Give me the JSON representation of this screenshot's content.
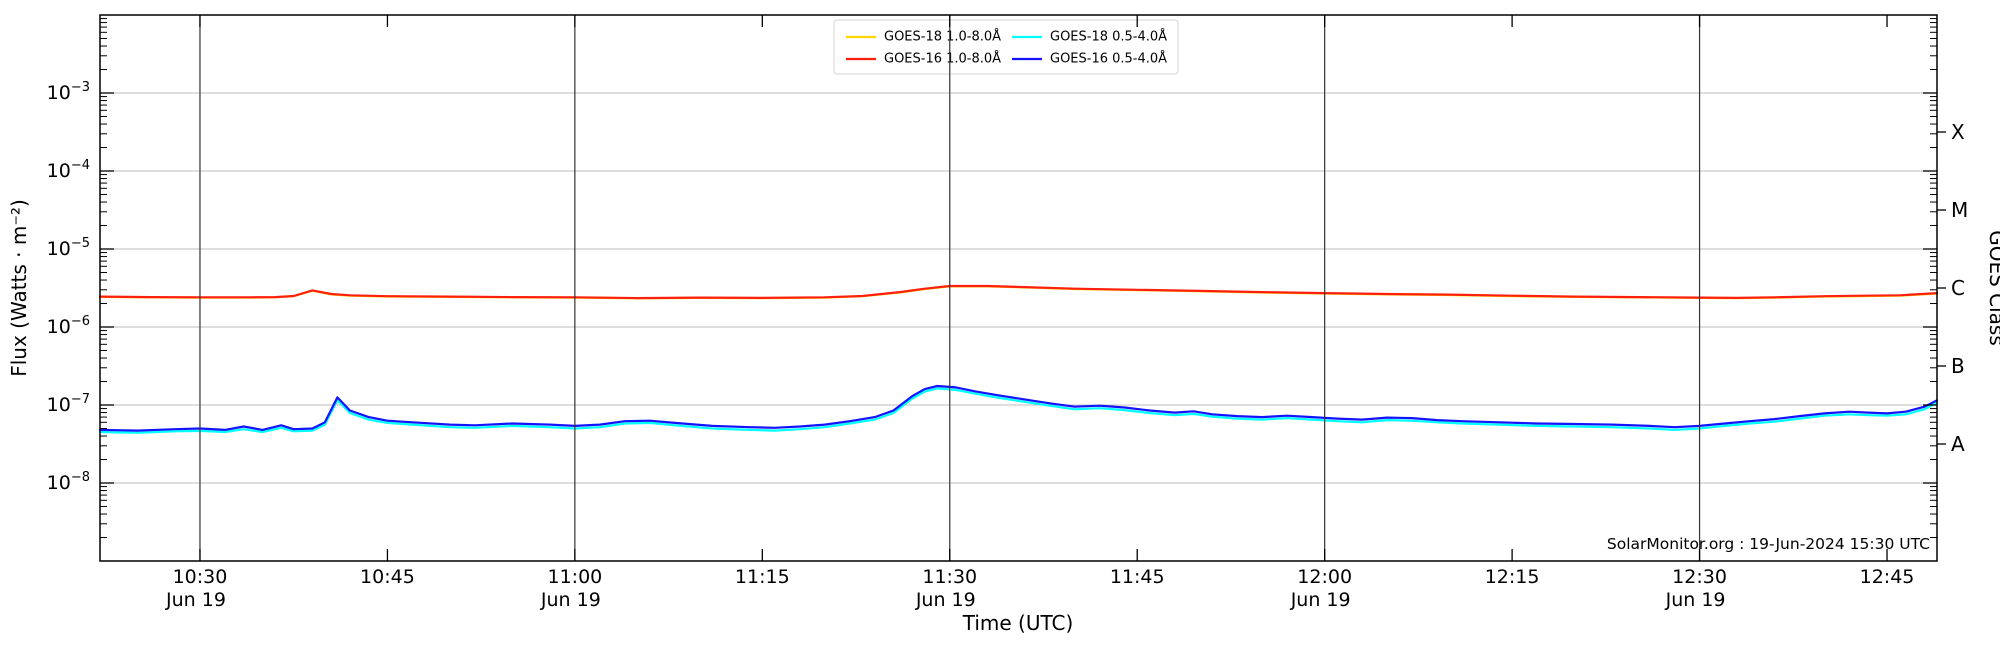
{
  "watermark": "SolarMonitor.org : 19-Jun-2024 15:30 UTC",
  "axes": {
    "xlabel": "Time (UTC)",
    "ylabel_left": "Flux (Watts · m⁻²)",
    "ylabel_right": "GOES Class"
  },
  "x_ticks": [
    {
      "t": 30,
      "label": "10:30",
      "date": "Jun 19",
      "grid": true
    },
    {
      "t": 45,
      "label": "10:45",
      "date": "",
      "grid": false
    },
    {
      "t": 60,
      "label": "11:00",
      "date": "Jun 19",
      "grid": true
    },
    {
      "t": 75,
      "label": "11:15",
      "date": "",
      "grid": false
    },
    {
      "t": 90,
      "label": "11:30",
      "date": "Jun 19",
      "grid": true
    },
    {
      "t": 105,
      "label": "11:45",
      "date": "",
      "grid": false
    },
    {
      "t": 120,
      "label": "12:00",
      "date": "Jun 19",
      "grid": true
    },
    {
      "t": 135,
      "label": "12:15",
      "date": "",
      "grid": false
    },
    {
      "t": 150,
      "label": "12:30",
      "date": "Jun 19",
      "grid": true
    },
    {
      "t": 165,
      "label": "12:45",
      "date": "",
      "grid": false
    }
  ],
  "y_ticks": [
    {
      "exp": -3,
      "base": "10",
      "sup": "−3"
    },
    {
      "exp": -4,
      "base": "10",
      "sup": "−4"
    },
    {
      "exp": -5,
      "base": "10",
      "sup": "−5"
    },
    {
      "exp": -6,
      "base": "10",
      "sup": "−6"
    },
    {
      "exp": -7,
      "base": "10",
      "sup": "−7"
    },
    {
      "exp": -8,
      "base": "10",
      "sup": "−8"
    }
  ],
  "goes_class": {
    "label": "GOES Class",
    "ticks": [
      {
        "label": "X",
        "value": 0.0003162
      },
      {
        "label": "M",
        "value": 3.162e-05
      },
      {
        "label": "C",
        "value": 3.162e-06
      },
      {
        "label": "B",
        "value": 3.162e-07
      },
      {
        "label": "A",
        "value": 3.162e-08
      }
    ]
  },
  "legend": {
    "entries": [
      "GOES-18 1.0-8.0Å",
      "GOES-16 1.0-8.0Å",
      "GOES-18 0.5-4.0Å",
      "GOES-16 0.5-4.0Å"
    ]
  },
  "colors": {
    "goes18_long": "#ffd600",
    "goes16_long": "#ff1f0e",
    "goes18_short": "#00ffff",
    "goes16_short": "#1313ff",
    "vgrid": "#333333",
    "hgrid": "#bdbdbd",
    "spine": "#000000"
  },
  "chart_data": {
    "type": "line",
    "title": "",
    "xlabel": "Time (UTC)",
    "ylabel": "Flux (Watts · m⁻²)",
    "y2label": "GOES Class",
    "x_unit": "minutes after 10:00 UTC, 19-Jun-2024",
    "xlim": [
      22,
      169
    ],
    "ylim": [
      1e-09,
      0.01
    ],
    "yscale": "log",
    "grid": {
      "vertical_every_min": 30,
      "horizontal_at_decades": [
        -8,
        -7,
        -6,
        -5,
        -4,
        -3
      ]
    },
    "legend_position": "upper center",
    "series": [
      {
        "name": "GOES-18 1.0-8.0Å",
        "color": "#ffd600",
        "points": [
          [
            22,
            2.43e-06
          ],
          [
            26,
            2.4e-06
          ],
          [
            30,
            2.38e-06
          ],
          [
            34,
            2.38e-06
          ],
          [
            36,
            2.4e-06
          ],
          [
            37.5,
            2.48e-06
          ],
          [
            39,
            2.92e-06
          ],
          [
            40.5,
            2.62e-06
          ],
          [
            42,
            2.52e-06
          ],
          [
            45,
            2.46e-06
          ],
          [
            50,
            2.43e-06
          ],
          [
            55,
            2.4e-06
          ],
          [
            60,
            2.38e-06
          ],
          [
            65,
            2.33e-06
          ],
          [
            70,
            2.36e-06
          ],
          [
            75,
            2.34e-06
          ],
          [
            80,
            2.38e-06
          ],
          [
            83,
            2.48e-06
          ],
          [
            86,
            2.77e-06
          ],
          [
            88,
            3.07e-06
          ],
          [
            90,
            3.32e-06
          ],
          [
            93,
            3.32e-06
          ],
          [
            96,
            3.22e-06
          ],
          [
            100,
            3.07e-06
          ],
          [
            105,
            2.97e-06
          ],
          [
            110,
            2.87e-06
          ],
          [
            115,
            2.77e-06
          ],
          [
            120,
            2.69e-06
          ],
          [
            125,
            2.62e-06
          ],
          [
            130,
            2.57e-06
          ],
          [
            135,
            2.49e-06
          ],
          [
            140,
            2.43e-06
          ],
          [
            145,
            2.4e-06
          ],
          [
            150,
            2.36e-06
          ],
          [
            153,
            2.34e-06
          ],
          [
            156,
            2.38e-06
          ],
          [
            160,
            2.46e-06
          ],
          [
            163,
            2.49e-06
          ],
          [
            166,
            2.52e-06
          ],
          [
            169,
            2.69e-06
          ]
        ]
      },
      {
        "name": "GOES-16 1.0-8.0Å",
        "color": "#ff1f0e",
        "points": [
          [
            22,
            2.45e-06
          ],
          [
            26,
            2.42e-06
          ],
          [
            30,
            2.4e-06
          ],
          [
            34,
            2.4e-06
          ],
          [
            36,
            2.42e-06
          ],
          [
            37.5,
            2.5e-06
          ],
          [
            39,
            2.95e-06
          ],
          [
            40.5,
            2.65e-06
          ],
          [
            42,
            2.55e-06
          ],
          [
            45,
            2.48e-06
          ],
          [
            50,
            2.45e-06
          ],
          [
            55,
            2.42e-06
          ],
          [
            60,
            2.4e-06
          ],
          [
            65,
            2.35e-06
          ],
          [
            70,
            2.38e-06
          ],
          [
            75,
            2.36e-06
          ],
          [
            80,
            2.4e-06
          ],
          [
            83,
            2.5e-06
          ],
          [
            86,
            2.8e-06
          ],
          [
            88,
            3.1e-06
          ],
          [
            90,
            3.35e-06
          ],
          [
            93,
            3.35e-06
          ],
          [
            96,
            3.25e-06
          ],
          [
            100,
            3.1e-06
          ],
          [
            105,
            3e-06
          ],
          [
            110,
            2.9e-06
          ],
          [
            115,
            2.8e-06
          ],
          [
            120,
            2.72e-06
          ],
          [
            125,
            2.65e-06
          ],
          [
            130,
            2.6e-06
          ],
          [
            135,
            2.52e-06
          ],
          [
            140,
            2.45e-06
          ],
          [
            145,
            2.42e-06
          ],
          [
            150,
            2.38e-06
          ],
          [
            153,
            2.36e-06
          ],
          [
            156,
            2.4e-06
          ],
          [
            160,
            2.48e-06
          ],
          [
            163,
            2.52e-06
          ],
          [
            166,
            2.55e-06
          ],
          [
            169,
            2.72e-06
          ]
        ]
      },
      {
        "name": "GOES-18 0.5-4.0Å",
        "color": "#00ffff",
        "points": [
          [
            22,
            4.5e-08
          ],
          [
            25,
            4.4e-08
          ],
          [
            28,
            4.6e-08
          ],
          [
            30,
            4.65e-08
          ],
          [
            32,
            4.5e-08
          ],
          [
            33.5,
            4.9e-08
          ],
          [
            35,
            4.5e-08
          ],
          [
            36.5,
            5.1e-08
          ],
          [
            37.5,
            4.6e-08
          ],
          [
            39,
            4.7e-08
          ],
          [
            40,
            5.6e-08
          ],
          [
            41,
            1.16e-07
          ],
          [
            42,
            7.9e-08
          ],
          [
            43.5,
            6.5e-08
          ],
          [
            45,
            5.9e-08
          ],
          [
            47,
            5.6e-08
          ],
          [
            50,
            5.2e-08
          ],
          [
            52,
            5.1e-08
          ],
          [
            55,
            5.4e-08
          ],
          [
            58,
            5.2e-08
          ],
          [
            60,
            5e-08
          ],
          [
            62,
            5.2e-08
          ],
          [
            64,
            5.8e-08
          ],
          [
            66,
            5.9e-08
          ],
          [
            68,
            5.5e-08
          ],
          [
            71,
            5e-08
          ],
          [
            74,
            4.8e-08
          ],
          [
            76,
            4.7e-08
          ],
          [
            78,
            4.9e-08
          ],
          [
            80,
            5.2e-08
          ],
          [
            82,
            5.8e-08
          ],
          [
            84,
            6.5e-08
          ],
          [
            85.5,
            7.9e-08
          ],
          [
            87,
            1.21e-07
          ],
          [
            88,
            1.49e-07
          ],
          [
            89,
            1.63e-07
          ],
          [
            90.5,
            1.56e-07
          ],
          [
            92,
            1.4e-07
          ],
          [
            94,
            1.23e-07
          ],
          [
            96,
            1.1e-07
          ],
          [
            98,
            9.8e-08
          ],
          [
            100,
            8.8e-08
          ],
          [
            102,
            9.1e-08
          ],
          [
            104,
            8.6e-08
          ],
          [
            106,
            7.9e-08
          ],
          [
            108,
            7.4e-08
          ],
          [
            109.5,
            7.7e-08
          ],
          [
            111,
            7.1e-08
          ],
          [
            113,
            6.7e-08
          ],
          [
            115,
            6.5e-08
          ],
          [
            117,
            6.8e-08
          ],
          [
            119,
            6.5e-08
          ],
          [
            121,
            6.2e-08
          ],
          [
            123,
            6e-08
          ],
          [
            125,
            6.4e-08
          ],
          [
            127,
            6.3e-08
          ],
          [
            129,
            6e-08
          ],
          [
            131,
            5.8e-08
          ],
          [
            134,
            5.6e-08
          ],
          [
            137,
            5.4e-08
          ],
          [
            140,
            5.3e-08
          ],
          [
            143,
            5.2e-08
          ],
          [
            146,
            5e-08
          ],
          [
            148,
            4.8e-08
          ],
          [
            150,
            5e-08
          ],
          [
            152,
            5.4e-08
          ],
          [
            154,
            5.8e-08
          ],
          [
            156,
            6.1e-08
          ],
          [
            158,
            6.7e-08
          ],
          [
            160,
            7.3e-08
          ],
          [
            162,
            7.6e-08
          ],
          [
            163.5,
            7.4e-08
          ],
          [
            165,
            7.3e-08
          ],
          [
            166.5,
            7.6e-08
          ],
          [
            168,
            8.8e-08
          ],
          [
            169,
            1.07e-07
          ]
        ]
      },
      {
        "name": "GOES-16 0.5-4.0Å",
        "color": "#1313ff",
        "points": [
          [
            22,
            4.8e-08
          ],
          [
            25,
            4.7e-08
          ],
          [
            28,
            4.9e-08
          ],
          [
            30,
            5e-08
          ],
          [
            32,
            4.8e-08
          ],
          [
            33.5,
            5.3e-08
          ],
          [
            35,
            4.8e-08
          ],
          [
            36.5,
            5.5e-08
          ],
          [
            37.5,
            4.9e-08
          ],
          [
            39,
            5e-08
          ],
          [
            40,
            6e-08
          ],
          [
            41,
            1.25e-07
          ],
          [
            42,
            8.5e-08
          ],
          [
            43.5,
            7e-08
          ],
          [
            45,
            6.3e-08
          ],
          [
            47,
            6e-08
          ],
          [
            50,
            5.6e-08
          ],
          [
            52,
            5.5e-08
          ],
          [
            55,
            5.8e-08
          ],
          [
            58,
            5.6e-08
          ],
          [
            60,
            5.4e-08
          ],
          [
            62,
            5.6e-08
          ],
          [
            64,
            6.2e-08
          ],
          [
            66,
            6.3e-08
          ],
          [
            68,
            5.9e-08
          ],
          [
            71,
            5.4e-08
          ],
          [
            74,
            5.2e-08
          ],
          [
            76,
            5.1e-08
          ],
          [
            78,
            5.3e-08
          ],
          [
            80,
            5.6e-08
          ],
          [
            82,
            6.2e-08
          ],
          [
            84,
            7e-08
          ],
          [
            85.5,
            8.5e-08
          ],
          [
            87,
            1.3e-07
          ],
          [
            88,
            1.6e-07
          ],
          [
            89,
            1.75e-07
          ],
          [
            90.5,
            1.68e-07
          ],
          [
            92,
            1.5e-07
          ],
          [
            94,
            1.32e-07
          ],
          [
            96,
            1.18e-07
          ],
          [
            98,
            1.05e-07
          ],
          [
            100,
            9.5e-08
          ],
          [
            102,
            9.8e-08
          ],
          [
            104,
            9.3e-08
          ],
          [
            106,
            8.5e-08
          ],
          [
            108,
            8e-08
          ],
          [
            109.5,
            8.3e-08
          ],
          [
            111,
            7.6e-08
          ],
          [
            113,
            7.2e-08
          ],
          [
            115,
            7e-08
          ],
          [
            117,
            7.3e-08
          ],
          [
            119,
            7e-08
          ],
          [
            121,
            6.7e-08
          ],
          [
            123,
            6.5e-08
          ],
          [
            125,
            6.9e-08
          ],
          [
            127,
            6.8e-08
          ],
          [
            129,
            6.4e-08
          ],
          [
            131,
            6.2e-08
          ],
          [
            134,
            6e-08
          ],
          [
            137,
            5.8e-08
          ],
          [
            140,
            5.7e-08
          ],
          [
            143,
            5.6e-08
          ],
          [
            146,
            5.4e-08
          ],
          [
            148,
            5.2e-08
          ],
          [
            150,
            5.4e-08
          ],
          [
            152,
            5.8e-08
          ],
          [
            154,
            6.2e-08
          ],
          [
            156,
            6.6e-08
          ],
          [
            158,
            7.2e-08
          ],
          [
            160,
            7.8e-08
          ],
          [
            162,
            8.2e-08
          ],
          [
            163.5,
            8e-08
          ],
          [
            165,
            7.8e-08
          ],
          [
            166.5,
            8.2e-08
          ],
          [
            168,
            9.5e-08
          ],
          [
            169,
            1.15e-07
          ]
        ]
      }
    ]
  }
}
